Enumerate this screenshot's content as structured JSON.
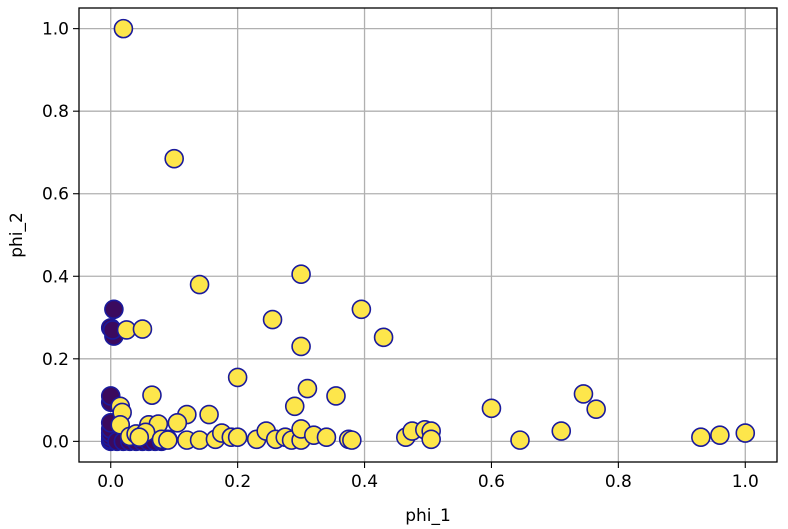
{
  "chart_data": {
    "type": "scatter",
    "title": "",
    "xlabel": "phi_1",
    "ylabel": "phi_2",
    "xlim": [
      -0.05,
      1.05
    ],
    "ylim": [
      -0.05,
      1.05
    ],
    "grid": true,
    "x_ticks": [
      0.0,
      0.2,
      0.4,
      0.6,
      0.8,
      1.0
    ],
    "y_ticks": [
      0.0,
      0.2,
      0.4,
      0.6,
      0.8,
      1.0
    ],
    "x_tick_labels": [
      "0.0",
      "0.2",
      "0.4",
      "0.6",
      "0.8",
      "1.0"
    ],
    "y_tick_labels": [
      "0.0",
      "0.2",
      "0.4",
      "0.6",
      "0.8",
      "1.0"
    ],
    "colors": {
      "dark_fill": "#3b0a5e",
      "light_fill": "#fde64b",
      "edge": "#1a1a9c",
      "grid": "#b0b0b0"
    },
    "series": [
      {
        "color": "#3b0a5e",
        "points": [
          [
            0.0,
            0.0
          ],
          [
            0.0,
            0.005
          ],
          [
            0.0,
            0.012
          ],
          [
            0.0,
            0.02
          ],
          [
            0.0,
            0.03
          ],
          [
            0.0,
            0.045
          ],
          [
            0.0,
            0.095
          ],
          [
            0.0,
            0.11
          ],
          [
            0.0,
            0.275
          ],
          [
            0.005,
            0.32
          ],
          [
            0.005,
            0.255
          ],
          [
            0.003,
            0.27
          ],
          [
            0.01,
            0.0
          ],
          [
            0.02,
            0.0
          ],
          [
            0.03,
            0.0
          ],
          [
            0.04,
            0.0
          ],
          [
            0.05,
            0.0
          ],
          [
            0.06,
            0.0
          ],
          [
            0.07,
            0.0
          ],
          [
            0.08,
            0.0
          ],
          [
            0.09,
            0.005
          ]
        ]
      },
      {
        "color": "#fde64b",
        "points": [
          [
            0.02,
            1.0
          ],
          [
            0.1,
            0.685
          ],
          [
            0.14,
            0.38
          ],
          [
            0.3,
            0.405
          ],
          [
            0.395,
            0.32
          ],
          [
            0.43,
            0.252
          ],
          [
            0.255,
            0.295
          ],
          [
            0.3,
            0.23
          ],
          [
            0.025,
            0.27
          ],
          [
            0.05,
            0.272
          ],
          [
            0.2,
            0.155
          ],
          [
            0.31,
            0.128
          ],
          [
            0.355,
            0.11
          ],
          [
            0.29,
            0.085
          ],
          [
            0.065,
            0.112
          ],
          [
            0.015,
            0.085
          ],
          [
            0.018,
            0.07
          ],
          [
            0.015,
            0.04
          ],
          [
            0.06,
            0.04
          ],
          [
            0.075,
            0.042
          ],
          [
            0.12,
            0.065
          ],
          [
            0.155,
            0.065
          ],
          [
            0.105,
            0.045
          ],
          [
            0.03,
            0.012
          ],
          [
            0.04,
            0.018
          ],
          [
            0.055,
            0.022
          ],
          [
            0.045,
            0.01
          ],
          [
            0.08,
            0.005
          ],
          [
            0.09,
            0.003
          ],
          [
            0.12,
            0.003
          ],
          [
            0.14,
            0.003
          ],
          [
            0.165,
            0.005
          ],
          [
            0.175,
            0.02
          ],
          [
            0.19,
            0.01
          ],
          [
            0.2,
            0.01
          ],
          [
            0.23,
            0.005
          ],
          [
            0.245,
            0.025
          ],
          [
            0.26,
            0.005
          ],
          [
            0.275,
            0.01
          ],
          [
            0.285,
            0.003
          ],
          [
            0.3,
            0.003
          ],
          [
            0.3,
            0.03
          ],
          [
            0.32,
            0.015
          ],
          [
            0.34,
            0.01
          ],
          [
            0.375,
            0.005
          ],
          [
            0.38,
            0.003
          ],
          [
            0.465,
            0.01
          ],
          [
            0.475,
            0.025
          ],
          [
            0.495,
            0.028
          ],
          [
            0.505,
            0.025
          ],
          [
            0.505,
            0.005
          ],
          [
            0.6,
            0.08
          ],
          [
            0.645,
            0.003
          ],
          [
            0.71,
            0.025
          ],
          [
            0.745,
            0.115
          ],
          [
            0.765,
            0.078
          ],
          [
            0.93,
            0.01
          ],
          [
            0.96,
            0.015
          ],
          [
            1.0,
            0.02
          ]
        ]
      }
    ]
  }
}
